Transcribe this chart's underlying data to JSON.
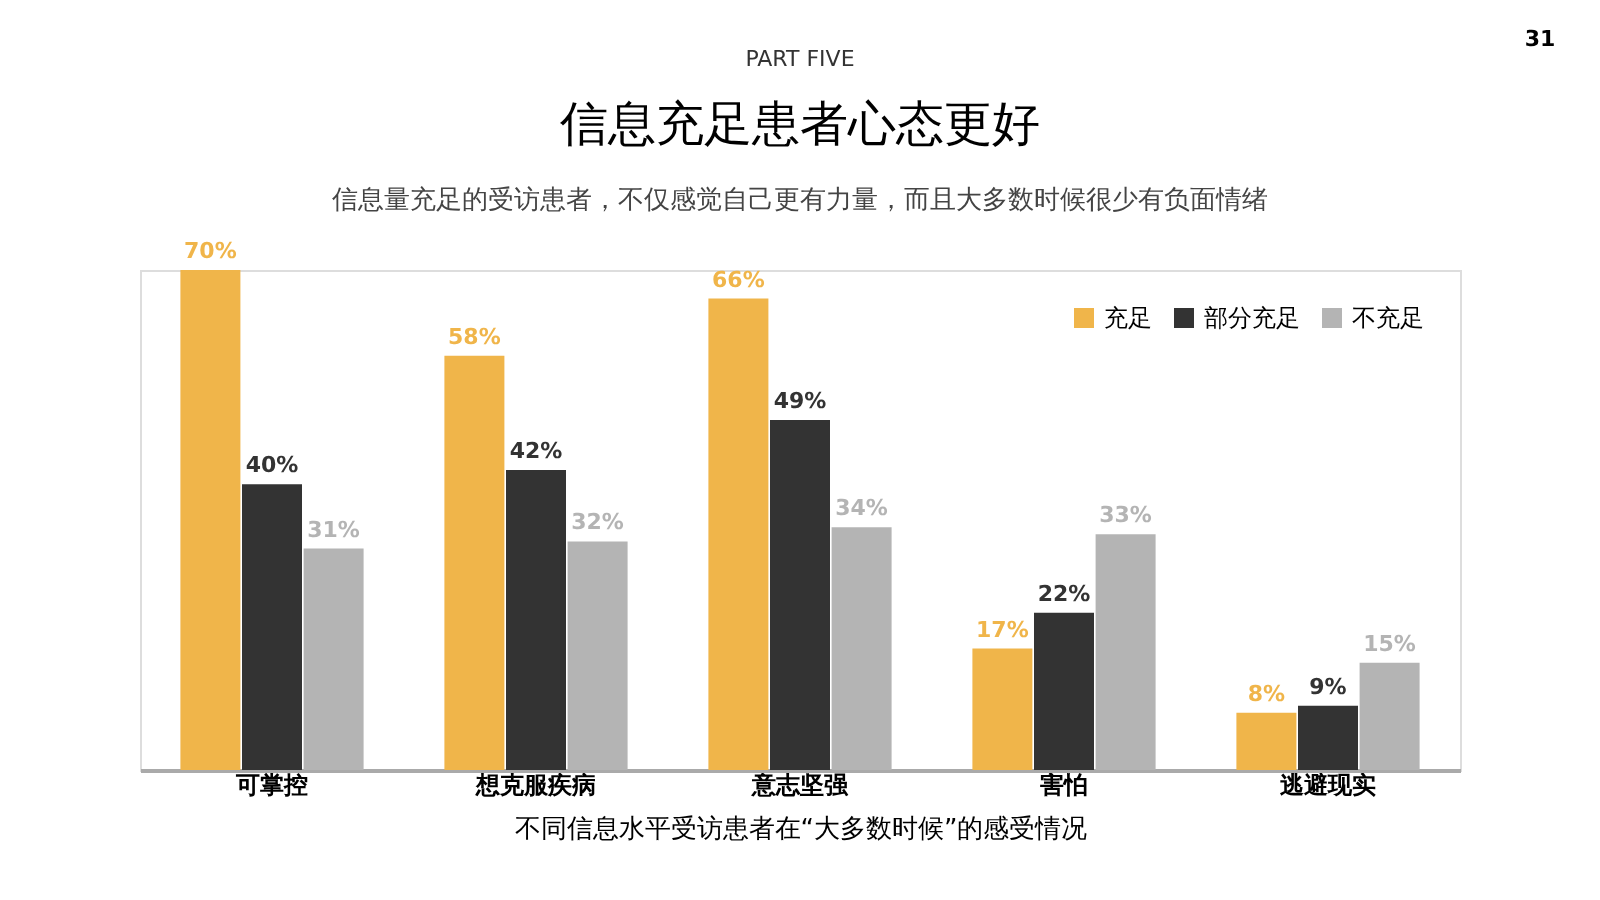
{
  "chart_data": {
    "type": "bar",
    "title": "信息充足患者心态更好",
    "subtitle": "信息量充足的受访患者，不仅感觉自己更有力量，而且大多数时候很少有负面情绪",
    "xlabel": "不同信息水平受访患者在“大多数时候”的感受情况",
    "annotations": [
      "PART FIVE",
      "31"
    ],
    "categories": [
      "可掌控",
      "想克服疾病",
      "意志坚强",
      "害怕",
      "逃避现实"
    ],
    "series": [
      {
        "name": "充足",
        "color": "#f0b54a",
        "values": [
          70,
          58,
          66,
          17,
          8
        ],
        "value_labels": [
          "70%",
          "58%",
          "66%",
          "17%",
          "8%"
        ]
      },
      {
        "name": "部分充足",
        "color": "#333333",
        "values": [
          40,
          42,
          49,
          22,
          9
        ],
        "value_labels": [
          "40%",
          "42%",
          "49%",
          "22%",
          "9%"
        ]
      },
      {
        "name": "不充足",
        "color": "#b4b4b4",
        "values": [
          31,
          32,
          34,
          33,
          15
        ],
        "value_labels": [
          "31%",
          "32%",
          "34%",
          "33%",
          "15%"
        ]
      }
    ],
    "legend": "top right",
    "grid": false
  }
}
